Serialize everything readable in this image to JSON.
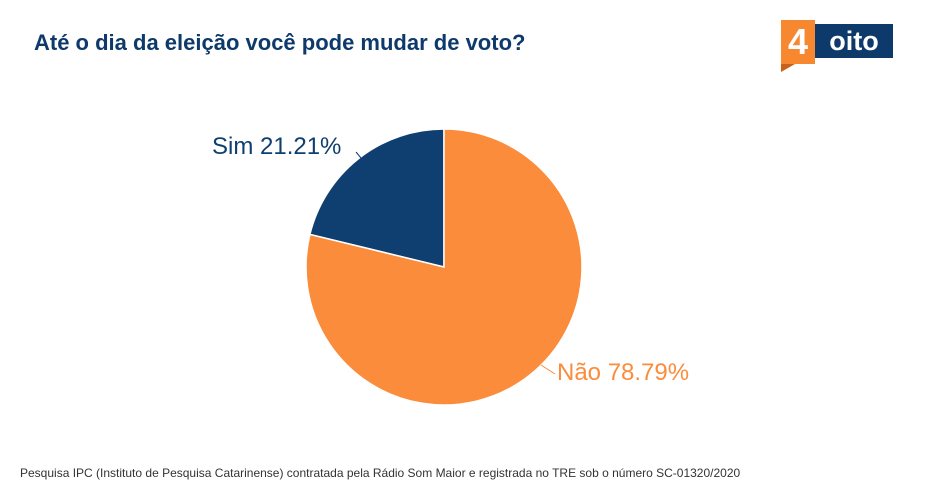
{
  "title": "Até o dia da eleição você pode mudar de voto?",
  "logo": {
    "digit": "4",
    "word": "oito"
  },
  "footer": "Pesquisa IPC (Instituto de Pesquisa Catarinense) contratada pela Rádio Som Maior e registrada no TRE sob o número SC-01320/2020",
  "colors": {
    "sim": "#0e3f70",
    "nao": "#fb8c3c",
    "title": "#0e3a6b"
  },
  "chart_data": {
    "type": "pie",
    "title": "Até o dia da eleição você pode mudar de voto?",
    "slices": [
      {
        "label": "Sim",
        "value": 21.21,
        "display": "Sim 21.21%",
        "color": "#0e3f70"
      },
      {
        "label": "Não",
        "value": 78.79,
        "display": "Não 78.79%",
        "color": "#fb8c3c"
      }
    ],
    "legend": false
  }
}
